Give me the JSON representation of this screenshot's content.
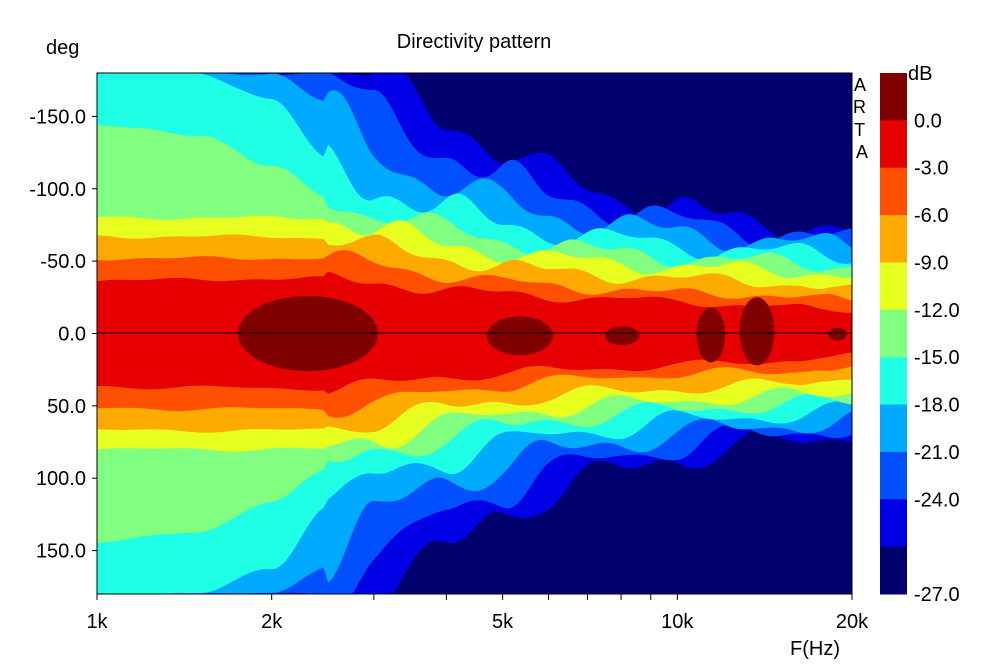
{
  "chart_data": {
    "type": "heatmap",
    "title": "Directivity pattern",
    "ylabel": "deg",
    "xlabel": "F(Hz)",
    "colorbar_label": "dB",
    "watermark": "ARTA",
    "x_scale": "log",
    "xlim": [
      1000,
      20000
    ],
    "ylim": [
      -180,
      180
    ],
    "y_ticks": [
      {
        "value": -150,
        "label": "-150.0"
      },
      {
        "value": -100,
        "label": "-100.0"
      },
      {
        "value": -50,
        "label": "-50.0"
      },
      {
        "value": 0,
        "label": "0.0"
      },
      {
        "value": 50,
        "label": "50.0"
      },
      {
        "value": 100,
        "label": "100.0"
      },
      {
        "value": 150,
        "label": "150.0"
      }
    ],
    "x_ticks": [
      {
        "value": 1000,
        "label": "1k"
      },
      {
        "value": 2000,
        "label": "2k"
      },
      {
        "value": 5000,
        "label": "5k"
      },
      {
        "value": 10000,
        "label": "10k"
      },
      {
        "value": 20000,
        "label": "20k"
      }
    ],
    "colorbar": {
      "ticks": [
        "0.0",
        "-3.0",
        "-6.0",
        "-9.0",
        "-12.0",
        "-15.0",
        "-18.0",
        "-21.0",
        "-24.0",
        "-27.0"
      ],
      "bands": [
        {
          "level": "0 and above",
          "color": "#800000"
        },
        {
          "level": "-3 to 0",
          "color": "#e60000"
        },
        {
          "level": "-6 to -3",
          "color": "#ff5000"
        },
        {
          "level": "-9 to -6",
          "color": "#ffaa00"
        },
        {
          "level": "-12 to -9",
          "color": "#e6ff1e"
        },
        {
          "level": "-15 to -12",
          "color": "#80ff80"
        },
        {
          "level": "-18 to -15",
          "color": "#1effe6"
        },
        {
          "level": "-21 to -18",
          "color": "#00aaff"
        },
        {
          "level": "-24 to -21",
          "color": "#0050ff"
        },
        {
          "level": "-27 to -24",
          "color": "#0000e6"
        },
        {
          "level": "below -27",
          "color": "#00006e"
        }
      ]
    },
    "contour_halfwidth_deg": {
      "freqs_hz": [
        1000,
        1500,
        2000,
        2500,
        3000,
        4000,
        5000,
        6000,
        8000,
        10000,
        12000,
        14000,
        16000,
        18000,
        20000
      ],
      "bands": [
        {
          "level_db": -3,
          "halfwidth": [
            37,
            37,
            38,
            38,
            35,
            30,
            28,
            25,
            24,
            22,
            20,
            20,
            18,
            16,
            15
          ]
        },
        {
          "level_db": -6,
          "halfwidth": [
            52,
            52,
            52,
            52,
            48,
            40,
            36,
            33,
            30,
            28,
            27,
            27,
            26,
            24,
            22
          ]
        },
        {
          "level_db": -9,
          "halfwidth": [
            67,
            67,
            67,
            66,
            60,
            52,
            47,
            43,
            40,
            38,
            37,
            36,
            34,
            32,
            30
          ]
        },
        {
          "level_db": -12,
          "halfwidth": [
            80,
            80,
            80,
            80,
            72,
            62,
            56,
            52,
            49,
            46,
            45,
            44,
            43,
            42,
            40
          ]
        },
        {
          "level_db": -15,
          "halfwidth": [
            143,
            138,
            115,
            95,
            83,
            72,
            65,
            60,
            56,
            53,
            51,
            50,
            49,
            48,
            47
          ]
        },
        {
          "level_db": -18,
          "halfwidth": [
            180,
            180,
            162,
            120,
            100,
            86,
            77,
            70,
            65,
            61,
            58,
            57,
            56,
            55,
            54
          ]
        },
        {
          "level_db": -21,
          "halfwidth": [
            180,
            180,
            180,
            160,
            125,
            102,
            92,
            82,
            75,
            70,
            66,
            64,
            63,
            62,
            60
          ]
        },
        {
          "level_db": -24,
          "halfwidth": [
            180,
            180,
            180,
            180,
            155,
            125,
            108,
            96,
            85,
            78,
            73,
            70,
            68,
            66,
            65
          ]
        },
        {
          "level_db": -27,
          "halfwidth": [
            180,
            180,
            180,
            180,
            178,
            150,
            125,
            110,
            95,
            86,
            80,
            77,
            74,
            72,
            70
          ]
        }
      ]
    },
    "peak_regions_above_0db": [
      {
        "f_start_hz": 1750,
        "f_end_hz": 3050,
        "deg_min": -26,
        "deg_max": 26
      },
      {
        "f_start_hz": 4700,
        "f_end_hz": 6100,
        "deg_min": -12,
        "deg_max": 15
      },
      {
        "f_start_hz": 7500,
        "f_end_hz": 8600,
        "deg_min": -5,
        "deg_max": 8
      },
      {
        "f_start_hz": 10800,
        "f_end_hz": 12100,
        "deg_min": -18,
        "deg_max": 20
      },
      {
        "f_start_hz": 12800,
        "f_end_hz": 14700,
        "deg_min": -25,
        "deg_max": 22
      },
      {
        "f_start_hz": 18200,
        "f_end_hz": 19600,
        "deg_min": -4,
        "deg_max": 5
      }
    ]
  }
}
